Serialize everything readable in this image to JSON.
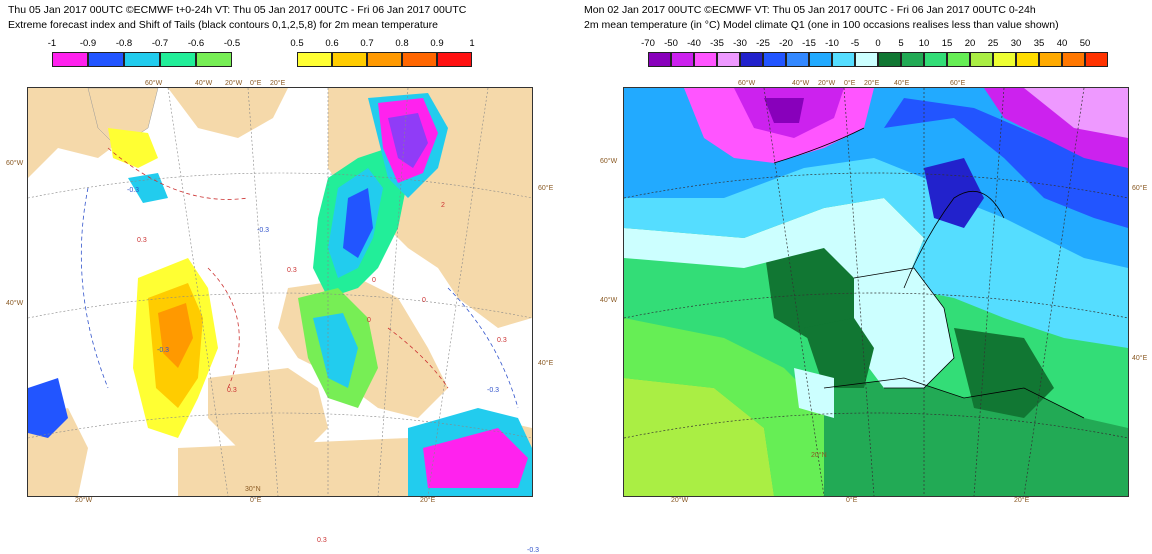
{
  "left_panel": {
    "title_line1": "Thu 05 Jan 2017 00UTC ©ECMWF t+0-24h   VT: Thu 05 Jan 2017 00UTC - Fri 06 Jan 2017 00UTC",
    "title_line2": "Extreme forecast index and Shift of Tails (black contours 0,1,2,5,8) for 2m mean temperature",
    "legend_negative": {
      "labels": [
        "-1",
        "-0.9",
        "-0.8",
        "-0.7",
        "-0.6",
        "-0.5"
      ],
      "colors": [
        "#ff22ee",
        "#2255ff",
        "#22ccee",
        "#22ee99",
        "#77ee55"
      ]
    },
    "legend_positive": {
      "labels": [
        "0.5",
        "0.6",
        "0.7",
        "0.8",
        "0.9",
        "1"
      ],
      "colors": [
        "#ffff33",
        "#ffcc00",
        "#ff9900",
        "#ff6600",
        "#ff1111"
      ]
    },
    "contour_labels": [
      "-0.3",
      "0.3",
      "-0.3",
      "0.3",
      "-0.3",
      "0.3",
      "-0.3",
      "0.3",
      "-0.3",
      "0.3",
      "0",
      "0",
      "0",
      "2"
    ],
    "grid_labels": [
      "60°W",
      "40°W",
      "20°W",
      "0°E",
      "20°E",
      "60°W",
      "40°W",
      "60°E",
      "40°E",
      "20°W",
      "0°E",
      "20°E",
      "30°N"
    ]
  },
  "right_panel": {
    "title_line1": "Mon 02 Jan 2017 00UTC ©ECMWF VT: Thu 05 Jan 2017 00UTC - Fri 06 Jan 2017 00UTC   0-24h",
    "title_line2": "2m mean temperature (in °C)  Model climate Q1  (one in 100 occasions realises less than value shown)",
    "legend": {
      "labels": [
        "-70",
        "-50",
        "-40",
        "-35",
        "-30",
        "-25",
        "-20",
        "-15",
        "-10",
        "-5",
        "0",
        "5",
        "10",
        "15",
        "20",
        "25",
        "30",
        "35",
        "40",
        "50"
      ],
      "colors": [
        "#8800bb",
        "#cc22ee",
        "#ff55ff",
        "#ee99ff",
        "#2222cc",
        "#2255ff",
        "#3388ff",
        "#22aaff",
        "#55ddff",
        "#ccffff",
        "#117733",
        "#22aa55",
        "#33dd77",
        "#66ee55",
        "#aaee44",
        "#eeff33",
        "#ffdd00",
        "#ffaa00",
        "#ff7700",
        "#ff3300"
      ]
    },
    "grid_labels": [
      "60°W",
      "40°W",
      "20°W",
      "0°E",
      "20°E",
      "40°E",
      "60°E",
      "60°W",
      "40°W",
      "60°E",
      "40°E",
      "20°W",
      "0°E",
      "20°E",
      "20°N"
    ]
  }
}
